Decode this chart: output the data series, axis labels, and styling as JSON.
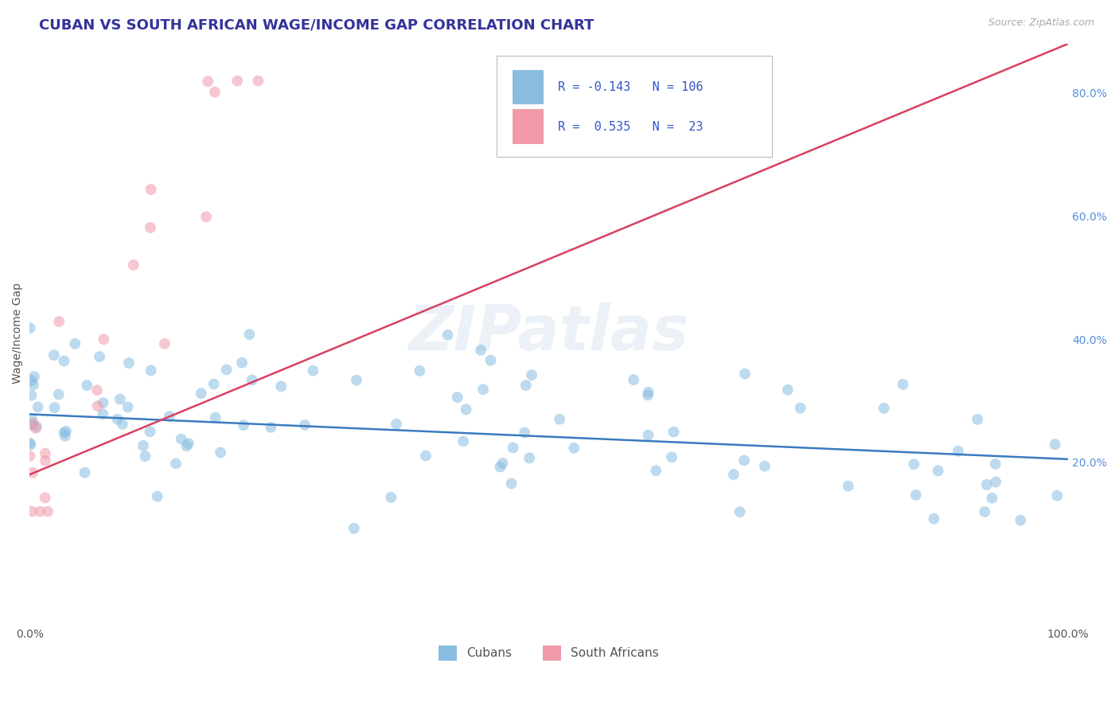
{
  "title": "CUBAN VS SOUTH AFRICAN WAGE/INCOME GAP CORRELATION CHART",
  "source_text": "Source: ZipAtlas.com",
  "ylabel": "Wage/Income Gap",
  "watermark": "ZIPatlas",
  "xlim": [
    0.0,
    1.0
  ],
  "ylim": [
    -0.06,
    0.88
  ],
  "ytick_labels_right": [
    "20.0%",
    "40.0%",
    "60.0%",
    "80.0%"
  ],
  "ytick_vals_right": [
    0.2,
    0.4,
    0.6,
    0.8
  ],
  "blue_line_x": [
    0.0,
    1.0
  ],
  "blue_line_y": [
    0.278,
    0.205
  ],
  "pink_line_x": [
    0.0,
    1.0
  ],
  "pink_line_y": [
    0.18,
    0.88
  ],
  "scatter_size": 100,
  "scatter_alpha": 0.55,
  "blue_color": "#88bde0",
  "pink_color": "#f09aaa",
  "blue_line_color": "#3a7bbf",
  "pink_line_color": "#d94060",
  "grid_color": "#c8c8c8",
  "grid_alpha": 0.9,
  "title_fontsize": 13,
  "axis_label_fontsize": 10,
  "tick_fontsize": 10,
  "bg_color": "#ffffff",
  "legend_entries": [
    {
      "label": "Cubans",
      "color": "#88bde0",
      "R": "-0.143",
      "N": "106"
    },
    {
      "label": "South Africans",
      "color": "#f09aaa",
      "R": "0.535",
      "N": "23"
    }
  ]
}
